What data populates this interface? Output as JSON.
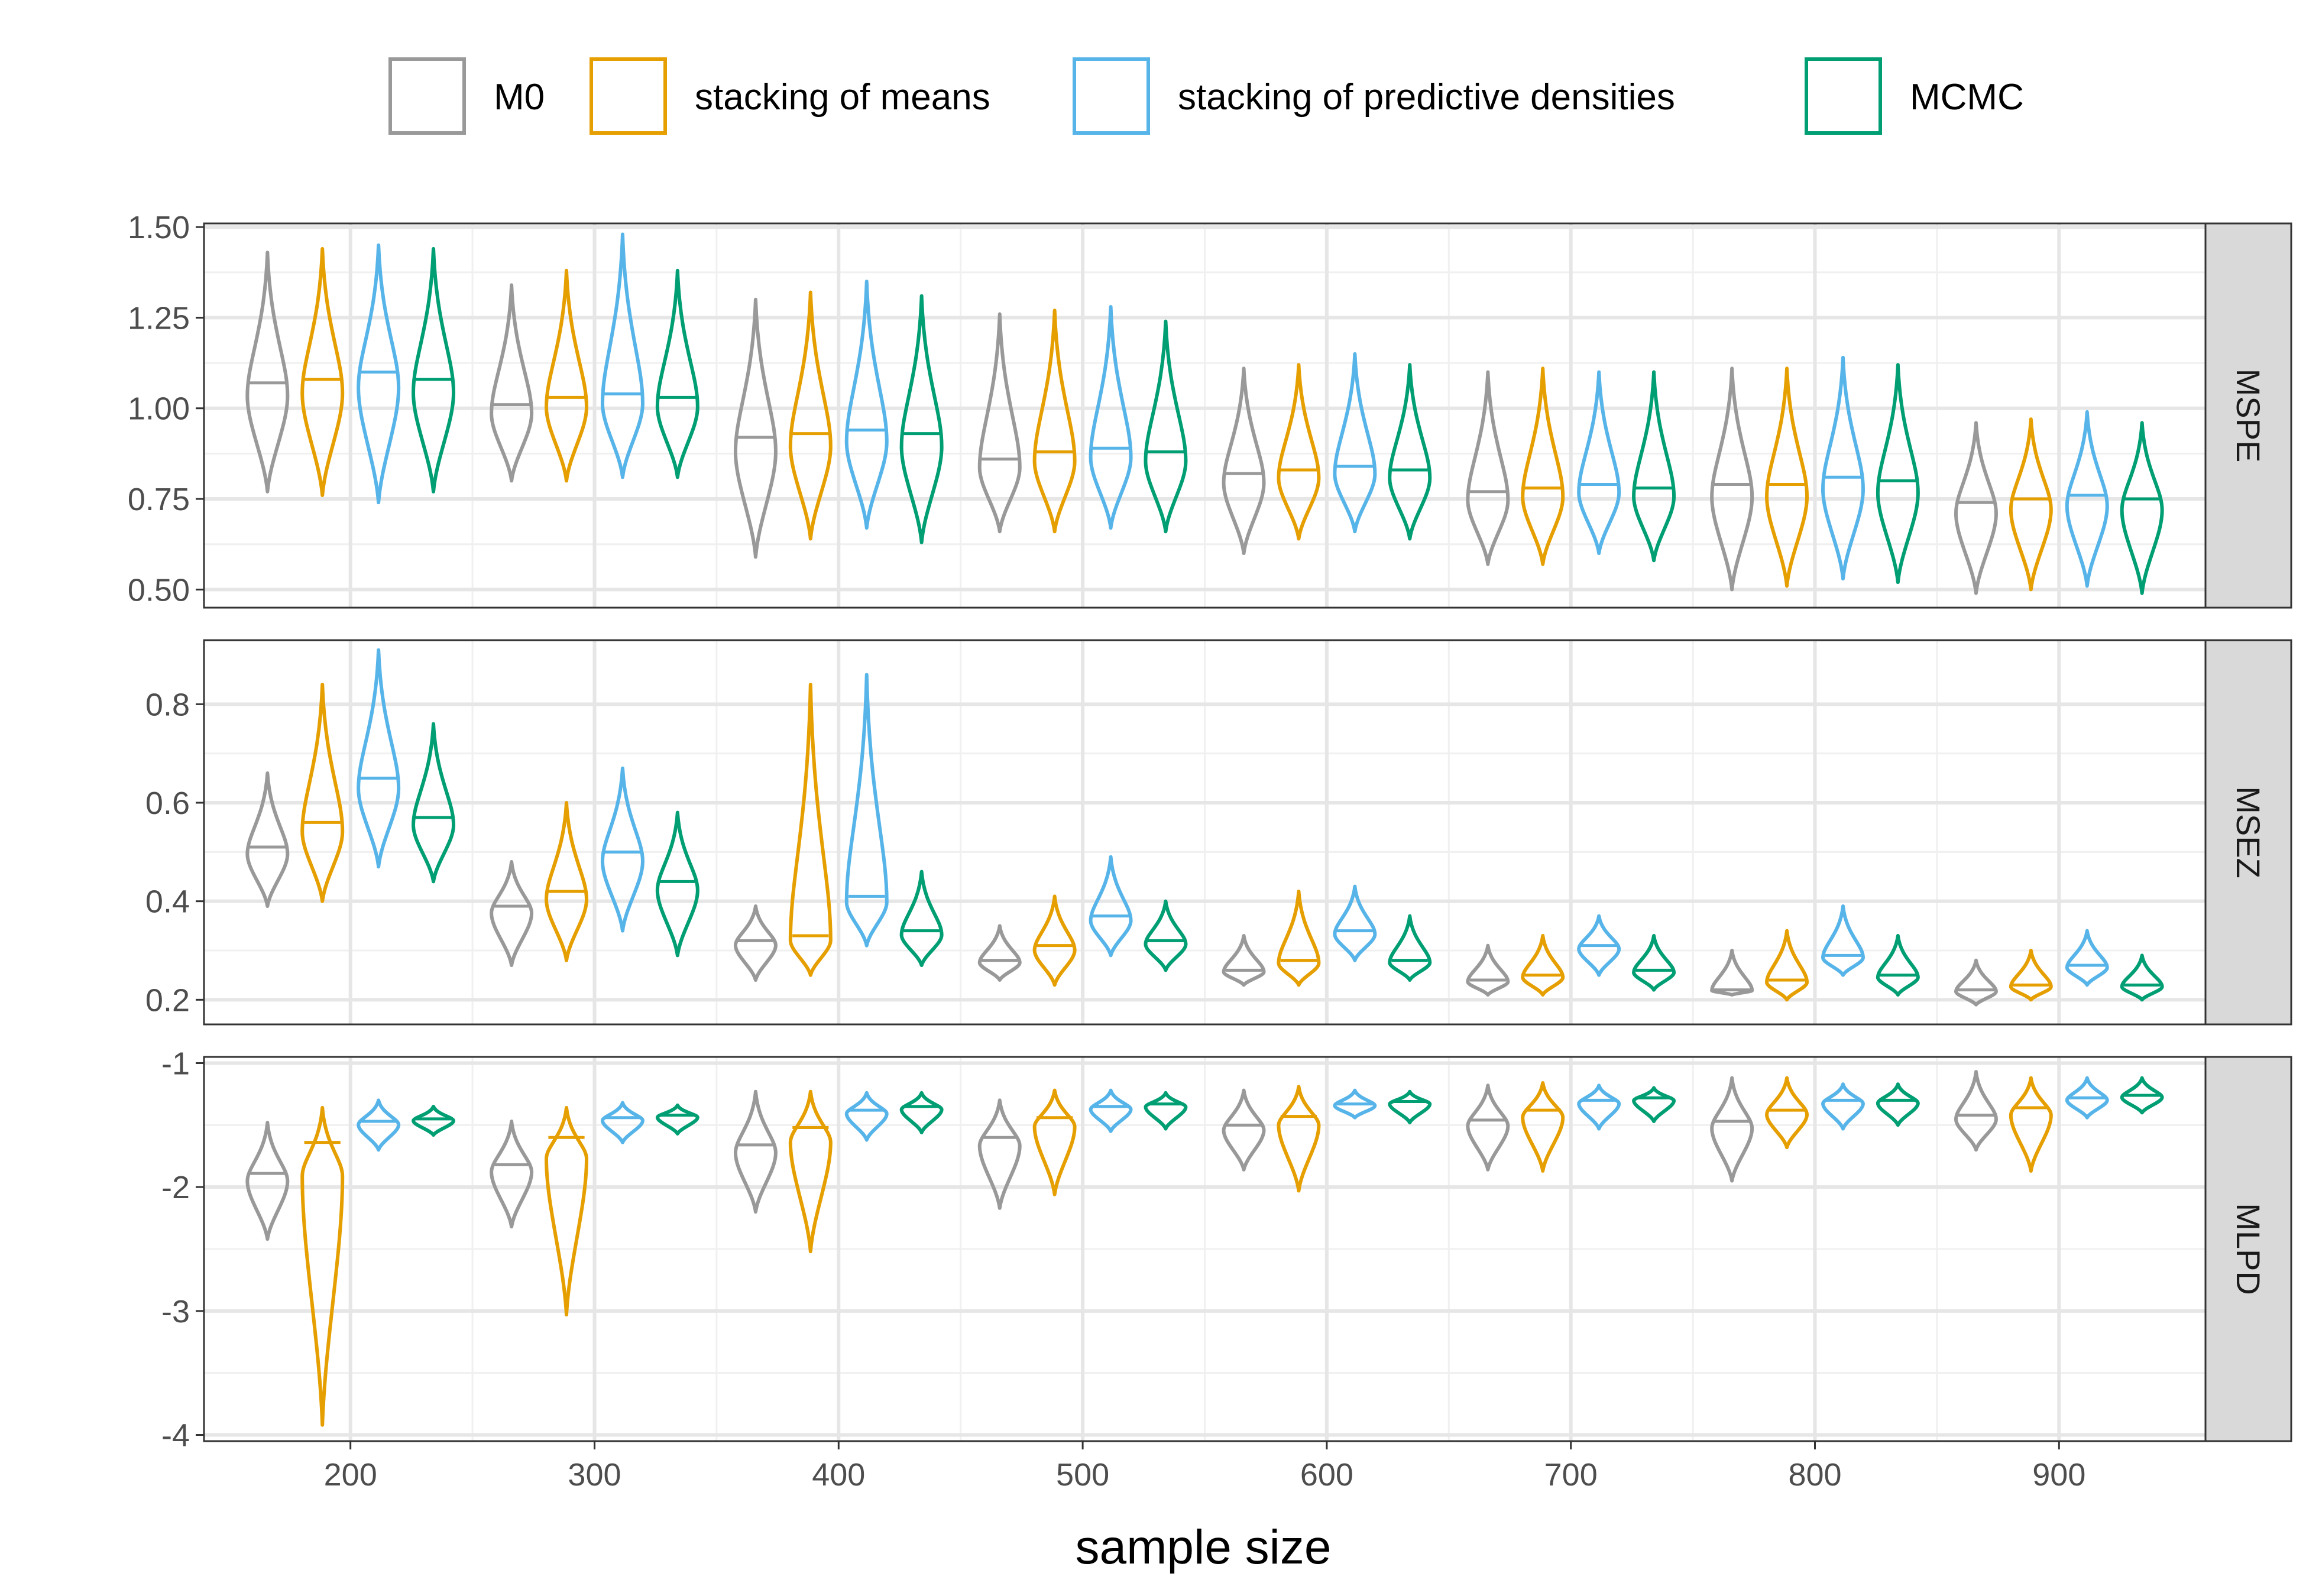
{
  "chart_data": {
    "type": "violin",
    "xlabel": "sample size",
    "x_ticks": [
      200,
      300,
      400,
      500,
      600,
      700,
      800,
      900
    ],
    "xlim": [
      140,
      960
    ],
    "legend": {
      "position": "top"
    },
    "colors": {
      "M0": "#999999",
      "stacking of means": "#E69F00",
      "stacking of predictive densities": "#56B4E9",
      "MCMC": "#009E73"
    },
    "methods": [
      "M0",
      "stacking of means",
      "stacking of predictive densities",
      "MCMC"
    ],
    "sample_sizes": [
      200,
      300,
      400,
      500,
      600,
      700,
      800,
      900
    ],
    "panels": [
      {
        "strip": "MSPE",
        "ylim": [
          0.45,
          1.51
        ],
        "y_ticks": [
          0.5,
          0.75,
          1.0,
          1.25,
          1.5
        ],
        "y_tick_labels": [
          "0.50",
          "0.75",
          "1.00",
          "1.25",
          "1.50"
        ],
        "series": [
          {
            "name": "M0",
            "min": [
              0.77,
              0.8,
              0.59,
              0.66,
              0.6,
              0.57,
              0.5,
              0.49
            ],
            "max": [
              1.43,
              1.34,
              1.3,
              1.26,
              1.11,
              1.1,
              1.11,
              0.96
            ],
            "median": [
              1.07,
              1.01,
              0.92,
              0.86,
              0.82,
              0.77,
              0.79,
              0.74
            ]
          },
          {
            "name": "stacking of means",
            "min": [
              0.76,
              0.8,
              0.64,
              0.66,
              0.64,
              0.57,
              0.51,
              0.5
            ],
            "max": [
              1.44,
              1.38,
              1.32,
              1.27,
              1.12,
              1.11,
              1.11,
              0.97
            ],
            "median": [
              1.08,
              1.03,
              0.93,
              0.88,
              0.83,
              0.78,
              0.79,
              0.75
            ]
          },
          {
            "name": "stacking of predictive densities",
            "min": [
              0.74,
              0.81,
              0.67,
              0.67,
              0.66,
              0.6,
              0.53,
              0.51
            ],
            "max": [
              1.45,
              1.48,
              1.35,
              1.28,
              1.15,
              1.1,
              1.14,
              0.99
            ],
            "median": [
              1.1,
              1.04,
              0.94,
              0.89,
              0.84,
              0.79,
              0.81,
              0.76
            ]
          },
          {
            "name": "MCMC",
            "min": [
              0.77,
              0.81,
              0.63,
              0.66,
              0.64,
              0.58,
              0.52,
              0.49
            ],
            "max": [
              1.44,
              1.38,
              1.31,
              1.24,
              1.12,
              1.1,
              1.12,
              0.96
            ],
            "median": [
              1.08,
              1.03,
              0.93,
              0.88,
              0.83,
              0.78,
              0.8,
              0.75
            ]
          }
        ]
      },
      {
        "strip": "MSEZ",
        "ylim": [
          0.15,
          0.93
        ],
        "y_ticks": [
          0.2,
          0.4,
          0.6,
          0.8
        ],
        "y_tick_labels": [
          "0.2",
          "0.4",
          "0.6",
          "0.8"
        ],
        "series": [
          {
            "name": "M0",
            "min": [
              0.39,
              0.27,
              0.24,
              0.24,
              0.23,
              0.21,
              0.21,
              0.19
            ],
            "max": [
              0.66,
              0.48,
              0.39,
              0.35,
              0.33,
              0.31,
              0.3,
              0.28
            ],
            "median": [
              0.51,
              0.39,
              0.32,
              0.28,
              0.26,
              0.24,
              0.22,
              0.22
            ]
          },
          {
            "name": "stacking of means",
            "min": [
              0.4,
              0.28,
              0.25,
              0.23,
              0.23,
              0.21,
              0.2,
              0.2
            ],
            "max": [
              0.84,
              0.6,
              0.84,
              0.41,
              0.42,
              0.33,
              0.34,
              0.3
            ],
            "median": [
              0.56,
              0.42,
              0.33,
              0.31,
              0.28,
              0.25,
              0.24,
              0.23
            ]
          },
          {
            "name": "stacking of predictive densities",
            "min": [
              0.47,
              0.34,
              0.31,
              0.29,
              0.28,
              0.25,
              0.25,
              0.23
            ],
            "max": [
              0.91,
              0.67,
              0.86,
              0.49,
              0.43,
              0.37,
              0.39,
              0.34
            ],
            "median": [
              0.65,
              0.5,
              0.41,
              0.37,
              0.34,
              0.31,
              0.29,
              0.27
            ]
          },
          {
            "name": "MCMC",
            "min": [
              0.44,
              0.29,
              0.27,
              0.26,
              0.24,
              0.22,
              0.21,
              0.2
            ],
            "max": [
              0.76,
              0.58,
              0.46,
              0.4,
              0.37,
              0.33,
              0.33,
              0.29
            ],
            "median": [
              0.57,
              0.44,
              0.34,
              0.32,
              0.28,
              0.26,
              0.25,
              0.23
            ]
          }
        ]
      },
      {
        "strip": "MLPD",
        "ylim": [
          -4.05,
          -0.95
        ],
        "y_ticks": [
          -1,
          -2,
          -3,
          -4
        ],
        "y_tick_labels": [
          "-1",
          "-2",
          "-3",
          "-4"
        ],
        "series": [
          {
            "name": "M0",
            "min": [
              -2.42,
              -2.32,
              -2.2,
              -2.17,
              -1.86,
              -1.86,
              -1.95,
              -1.7
            ],
            "max": [
              -1.48,
              -1.47,
              -1.23,
              -1.3,
              -1.22,
              -1.18,
              -1.12,
              -1.07
            ],
            "median": [
              -1.89,
              -1.82,
              -1.66,
              -1.6,
              -1.5,
              -1.46,
              -1.47,
              -1.42
            ]
          },
          {
            "name": "stacking of means",
            "min": [
              -3.92,
              -3.03,
              -2.52,
              -2.06,
              -2.03,
              -1.87,
              -1.68,
              -1.87
            ],
            "max": [
              -1.36,
              -1.36,
              -1.23,
              -1.22,
              -1.19,
              -1.16,
              -1.12,
              -1.12
            ],
            "median": [
              -1.64,
              -1.6,
              -1.52,
              -1.44,
              -1.43,
              -1.38,
              -1.38,
              -1.36
            ]
          },
          {
            "name": "stacking of predictive densities",
            "min": [
              -1.7,
              -1.64,
              -1.62,
              -1.55,
              -1.44,
              -1.53,
              -1.53,
              -1.44
            ],
            "max": [
              -1.3,
              -1.32,
              -1.24,
              -1.22,
              -1.22,
              -1.18,
              -1.17,
              -1.12
            ],
            "median": [
              -1.47,
              -1.44,
              -1.38,
              -1.35,
              -1.33,
              -1.3,
              -1.3,
              -1.28
            ]
          },
          {
            "name": "MCMC",
            "min": [
              -1.58,
              -1.57,
              -1.56,
              -1.53,
              -1.48,
              -1.47,
              -1.5,
              -1.4
            ],
            "max": [
              -1.35,
              -1.34,
              -1.24,
              -1.24,
              -1.23,
              -1.2,
              -1.17,
              -1.12
            ],
            "median": [
              -1.45,
              -1.42,
              -1.35,
              -1.33,
              -1.31,
              -1.28,
              -1.3,
              -1.26
            ]
          }
        ]
      }
    ]
  }
}
